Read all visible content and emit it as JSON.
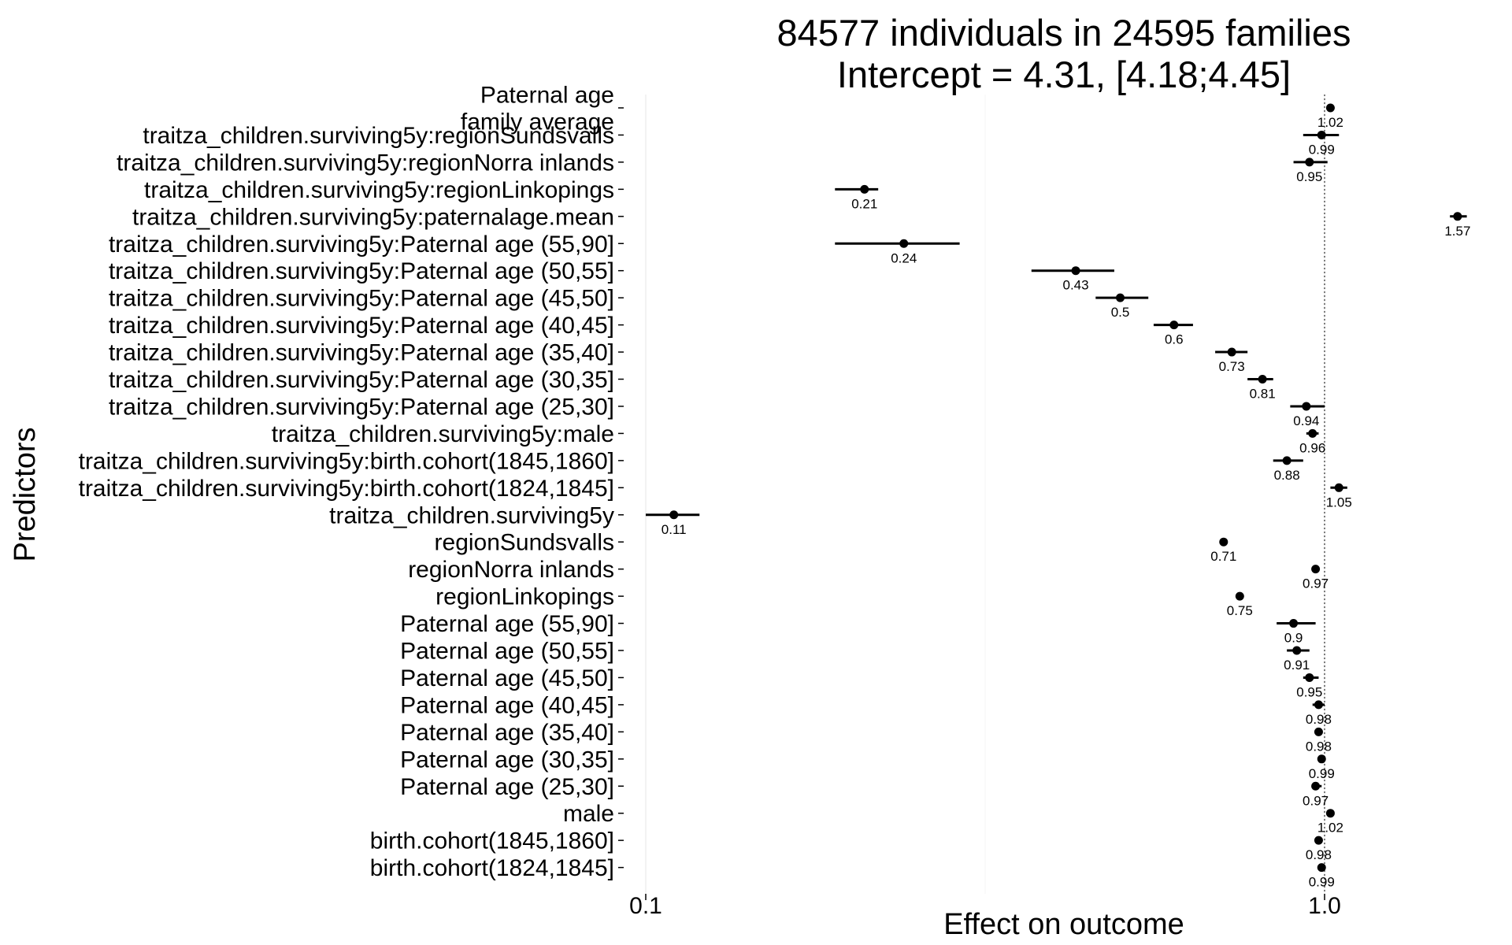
{
  "chart_data": {
    "type": "forest",
    "title": "84577 individuals in 24595 families",
    "subtitle": "Intercept = 4.31, [4.18;4.45]",
    "xlabel": "Effect on outcome",
    "ylabel": "Predictors",
    "x_scale": "log",
    "x_ticks": [
      "0.1",
      "1.0"
    ],
    "xlim": [
      0.095,
      1.72
    ],
    "reference_line": 1.0,
    "grid": "vertical major gridlines",
    "rows": [
      {
        "label": "Paternal age\nfamily average",
        "value": 1.02,
        "lo": 1.01,
        "hi": 1.03,
        "value_label": "1.02"
      },
      {
        "label": "traitza_children.surviving5y:regionSundsvalls",
        "value": 0.99,
        "lo": 0.93,
        "hi": 1.05,
        "value_label": "0.99"
      },
      {
        "label": "traitza_children.surviving5y:regionNorra inlands",
        "value": 0.95,
        "lo": 0.9,
        "hi": 1.01,
        "value_label": "0.95"
      },
      {
        "label": "traitza_children.surviving5y:regionLinkopings",
        "value": 0.21,
        "lo": 0.19,
        "hi": 0.22,
        "value_label": "0.21"
      },
      {
        "label": "traitza_children.surviving5y:paternalage.mean",
        "value": 1.57,
        "lo": 1.53,
        "hi": 1.62,
        "value_label": "1.57"
      },
      {
        "label": "traitza_children.surviving5y:Paternal age (55,90]",
        "value": 0.24,
        "lo": 0.19,
        "hi": 0.29,
        "value_label": "0.24"
      },
      {
        "label": "traitza_children.surviving5y:Paternal age (50,55]",
        "value": 0.43,
        "lo": 0.37,
        "hi": 0.49,
        "value_label": "0.43"
      },
      {
        "label": "traitza_children.surviving5y:Paternal age (45,50]",
        "value": 0.5,
        "lo": 0.46,
        "hi": 0.55,
        "value_label": "0.5"
      },
      {
        "label": "traitza_children.surviving5y:Paternal age (40,45]",
        "value": 0.6,
        "lo": 0.56,
        "hi": 0.64,
        "value_label": "0.6"
      },
      {
        "label": "traitza_children.surviving5y:Paternal age (35,40]",
        "value": 0.73,
        "lo": 0.69,
        "hi": 0.77,
        "value_label": "0.73"
      },
      {
        "label": "traitza_children.surviving5y:Paternal age (30,35]",
        "value": 0.81,
        "lo": 0.77,
        "hi": 0.84,
        "value_label": "0.81"
      },
      {
        "label": "traitza_children.surviving5y:Paternal age (25,30]",
        "value": 0.94,
        "lo": 0.89,
        "hi": 1.0,
        "value_label": "0.94"
      },
      {
        "label": "traitza_children.surviving5y:male",
        "value": 0.96,
        "lo": 0.94,
        "hi": 0.98,
        "value_label": "0.96"
      },
      {
        "label": "traitza_children.surviving5y:birth.cohort(1845,1860]",
        "value": 0.88,
        "lo": 0.84,
        "hi": 0.93,
        "value_label": "0.88"
      },
      {
        "label": "traitza_children.surviving5y:birth.cohort(1824,1845]",
        "value": 1.05,
        "lo": 1.02,
        "hi": 1.08,
        "value_label": "1.05"
      },
      {
        "label": "traitza_children.surviving5y",
        "value": 0.11,
        "lo": 0.1,
        "hi": 0.12,
        "value_label": "0.11"
      },
      {
        "label": "regionSundsvalls",
        "value": 0.71,
        "lo": 0.7,
        "hi": 0.72,
        "value_label": "0.71"
      },
      {
        "label": "regionNorra inlands",
        "value": 0.97,
        "lo": 0.96,
        "hi": 0.98,
        "value_label": "0.97"
      },
      {
        "label": "regionLinkopings",
        "value": 0.75,
        "lo": 0.74,
        "hi": 0.76,
        "value_label": "0.75"
      },
      {
        "label": "Paternal age (55,90]",
        "value": 0.9,
        "lo": 0.85,
        "hi": 0.97,
        "value_label": "0.9"
      },
      {
        "label": "Paternal age (50,55]",
        "value": 0.91,
        "lo": 0.88,
        "hi": 0.95,
        "value_label": "0.91"
      },
      {
        "label": "Paternal age (45,50]",
        "value": 0.95,
        "lo": 0.93,
        "hi": 0.98,
        "value_label": "0.95"
      },
      {
        "label": "Paternal age (40,45]",
        "value": 0.98,
        "lo": 0.96,
        "hi": 1.0,
        "value_label": "0.98"
      },
      {
        "label": "Paternal age (35,40]",
        "value": 0.98,
        "lo": 0.97,
        "hi": 0.99,
        "value_label": "0.98"
      },
      {
        "label": "Paternal age (30,35]",
        "value": 0.99,
        "lo": 0.98,
        "hi": 1.0,
        "value_label": "0.99"
      },
      {
        "label": "Paternal age (25,30]",
        "value": 0.97,
        "lo": 0.96,
        "hi": 0.99,
        "value_label": "0.97"
      },
      {
        "label": "male",
        "value": 1.02,
        "lo": 1.01,
        "hi": 1.03,
        "value_label": "1.02"
      },
      {
        "label": "birth.cohort(1845,1860]",
        "value": 0.98,
        "lo": 0.97,
        "hi": 0.99,
        "value_label": "0.98"
      },
      {
        "label": "birth.cohort(1824,1845]",
        "value": 0.99,
        "lo": 0.98,
        "hi": 1.0,
        "value_label": "0.99"
      }
    ],
    "colors": {
      "point": "#000000",
      "ci_line": "#000000",
      "grid": "#ebebeb",
      "reference_line": "#555555",
      "text": "#000000"
    }
  }
}
